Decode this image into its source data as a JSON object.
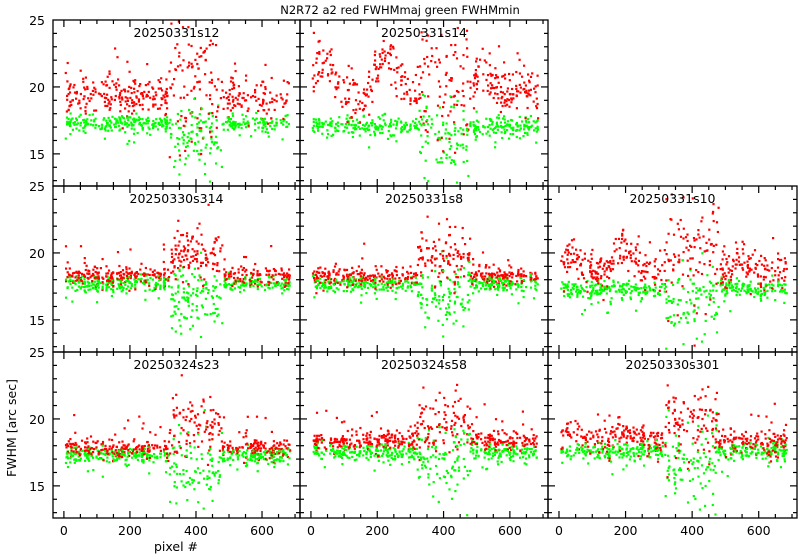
{
  "title": "N2R72  a2  red FWHMmaj  green FWHMmin",
  "colors": {
    "major": "#ff0000",
    "minor": "#00ff00",
    "axis": "#000000"
  },
  "chart_data": {
    "type": "scatter",
    "title": "N2R72  a2  red FWHMmaj  green FWHMmin",
    "xlabel": "pixel #",
    "ylabel": "FWHM [arc sec]",
    "xlim": [
      -33,
      715
    ],
    "ylim": [
      12.6,
      25
    ],
    "x_ticks": [
      "0",
      "200",
      "400",
      "600"
    ],
    "y_ticks": [
      "15",
      "20",
      "25"
    ],
    "grid": false,
    "legend": "title",
    "series_names": [
      "FWHMmaj (red)",
      "FWHMmin (green)"
    ],
    "panels": [
      {
        "label": "20250331s12",
        "row": 0,
        "col": 0,
        "maj": 19.3,
        "min": 17.3,
        "maj_spread": 0.8,
        "min_spread": 0.3,
        "maj_bumps": [],
        "gap_center": 400,
        "gap_depth": 1.5
      },
      {
        "label": "20250331s14",
        "row": 0,
        "col": 1,
        "maj": 19.0,
        "min": 17.1,
        "maj_spread": 0.9,
        "min_spread": 0.4,
        "maj_bumps": [
          [
            40,
            22.0
          ],
          [
            230,
            22.6
          ],
          [
            520,
            20.8
          ],
          [
            640,
            19.8
          ]
        ],
        "gap_center": 400,
        "gap_depth": 2.0
      },
      {
        "label": "20250330s314",
        "row": 1,
        "col": 0,
        "maj": 18.3,
        "min": 17.7,
        "maj_spread": 0.35,
        "min_spread": 0.3,
        "maj_bumps": [],
        "gap_center": 400,
        "gap_depth": 1.5
      },
      {
        "label": "20250331s8",
        "row": 1,
        "col": 1,
        "maj": 18.2,
        "min": 17.7,
        "maj_spread": 0.35,
        "min_spread": 0.3,
        "maj_bumps": [],
        "gap_center": 400,
        "gap_depth": 1.6
      },
      {
        "label": "20250331s10",
        "row": 1,
        "col": 2,
        "maj": 18.6,
        "min": 17.3,
        "maj_spread": 0.7,
        "min_spread": 0.35,
        "maj_bumps": [
          [
            30,
            19.8
          ],
          [
            190,
            20.0
          ],
          [
            540,
            19.3
          ]
        ],
        "gap_center": 400,
        "gap_depth": 2.0
      },
      {
        "label": "20250324s23",
        "row": 2,
        "col": 0,
        "maj": 17.8,
        "min": 17.3,
        "maj_spread": 0.35,
        "min_spread": 0.3,
        "maj_bumps": [],
        "gap_center": 400,
        "gap_depth": 1.8
      },
      {
        "label": "20250324s58",
        "row": 2,
        "col": 1,
        "maj": 18.3,
        "min": 17.5,
        "maj_spread": 0.35,
        "min_spread": 0.3,
        "maj_bumps": [],
        "gap_center": 400,
        "gap_depth": 1.0
      },
      {
        "label": "20250330s301",
        "row": 2,
        "col": 2,
        "maj": 18.3,
        "min": 17.6,
        "maj_spread": 0.5,
        "min_spread": 0.35,
        "maj_bumps": [
          [
            30,
            18.9
          ],
          [
            200,
            19.0
          ]
        ],
        "gap_center": 400,
        "gap_depth": 2.0
      }
    ]
  }
}
